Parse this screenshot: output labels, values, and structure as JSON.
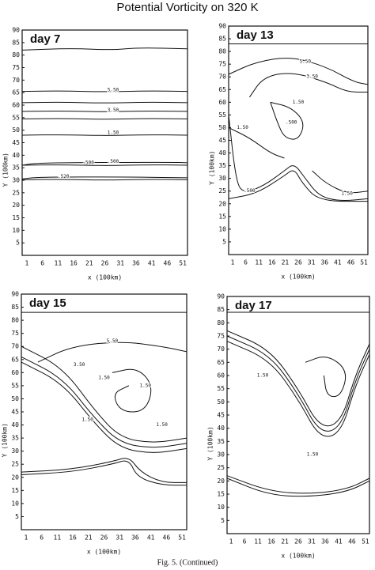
{
  "title": "Potential Vorticity on 320 K",
  "caption": "Fig. 5. (Continued)",
  "panels": [
    {
      "label": "day 7",
      "x_label": "x (100km)",
      "y_label": "Y (100km)",
      "xticks": [
        1,
        6,
        11,
        16,
        21,
        26,
        31,
        36,
        41,
        46,
        51
      ],
      "yticks": [
        5,
        10,
        15,
        20,
        25,
        30,
        35,
        40,
        45,
        50,
        55,
        60,
        65,
        70,
        75,
        80,
        85,
        90
      ],
      "contour_labels": [
        "5.50",
        "3.50",
        "1.50",
        ".500",
        ".500",
        ".520"
      ]
    },
    {
      "label": "day 13",
      "x_label": "x (100km)",
      "y_label": "Y (100km)",
      "xticks": [
        1,
        6,
        11,
        16,
        21,
        26,
        31,
        36,
        41,
        46,
        51
      ],
      "yticks": [
        5,
        10,
        15,
        20,
        25,
        30,
        35,
        40,
        45,
        50,
        55,
        60,
        65,
        70,
        75,
        80,
        85,
        90
      ],
      "contour_labels": [
        "5.50",
        "3.50",
        "1.50",
        ".500",
        "1.50",
        ".500",
        "1.50"
      ]
    },
    {
      "label": "day 15",
      "x_label": "x (100km)",
      "y_label": "Y (100km)",
      "xticks": [
        1,
        6,
        11,
        16,
        21,
        26,
        31,
        36,
        41,
        46,
        51
      ],
      "yticks": [
        5,
        10,
        15,
        20,
        25,
        30,
        35,
        40,
        45,
        50,
        55,
        60,
        65,
        70,
        75,
        80,
        85,
        90
      ],
      "contour_labels": [
        "5.50",
        "3.50",
        "1.50",
        "1.50",
        "1.50",
        "1.50"
      ]
    },
    {
      "label": "day 17",
      "x_label": "x (100km)",
      "y_label": "Y (100km)",
      "xticks": [
        1,
        6,
        11,
        16,
        21,
        26,
        31,
        36,
        41,
        46,
        51
      ],
      "yticks": [
        5,
        10,
        15,
        20,
        25,
        30,
        35,
        40,
        45,
        50,
        55,
        60,
        65,
        70,
        75,
        80,
        85,
        90
      ],
      "contour_labels": [
        "1.50",
        "1.50"
      ]
    }
  ]
}
